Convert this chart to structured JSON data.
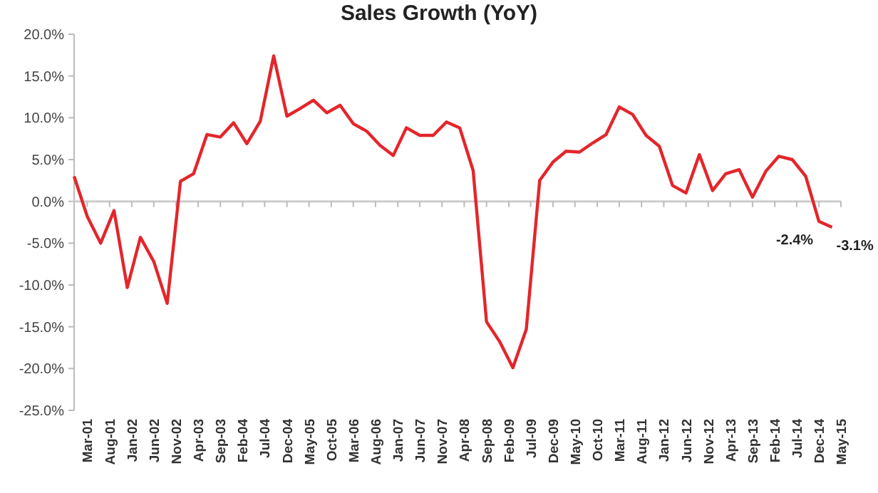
{
  "chart_data": {
    "type": "line",
    "title": "Sales Growth (YoY)",
    "marker": "none",
    "line_style": "solid",
    "xlim": [
      "2000-12",
      "2015-05"
    ],
    "ylim": [
      -25,
      20
    ],
    "yticks": [
      {
        "value": 20,
        "label": "20.0%"
      },
      {
        "value": 15,
        "label": "15.0%"
      },
      {
        "value": 10,
        "label": "10.0%"
      },
      {
        "value": 5,
        "label": "5.0%"
      },
      {
        "value": 0,
        "label": "0.0%"
      },
      {
        "value": -5,
        "label": "-5.0%"
      },
      {
        "value": -10,
        "label": "-10.0%"
      },
      {
        "value": -15,
        "label": "-15.0%"
      },
      {
        "value": -20,
        "label": "-20.0%"
      },
      {
        "value": -25,
        "label": "-25.0%"
      }
    ],
    "xticks": [
      {
        "value": "2001-03",
        "label": "Mar-01"
      },
      {
        "value": "2001-08",
        "label": "Aug-01"
      },
      {
        "value": "2002-01",
        "label": "Jan-02"
      },
      {
        "value": "2002-06",
        "label": "Jun-02"
      },
      {
        "value": "2002-11",
        "label": "Nov-02"
      },
      {
        "value": "2003-04",
        "label": "Apr-03"
      },
      {
        "value": "2003-09",
        "label": "Sep-03"
      },
      {
        "value": "2004-02",
        "label": "Feb-04"
      },
      {
        "value": "2004-07",
        "label": "Jul-04"
      },
      {
        "value": "2004-12",
        "label": "Dec-04"
      },
      {
        "value": "2005-05",
        "label": "May-05"
      },
      {
        "value": "2005-10",
        "label": "Oct-05"
      },
      {
        "value": "2006-03",
        "label": "Mar-06"
      },
      {
        "value": "2006-08",
        "label": "Aug-06"
      },
      {
        "value": "2007-01",
        "label": "Jan-07"
      },
      {
        "value": "2007-06",
        "label": "Jun-07"
      },
      {
        "value": "2007-11",
        "label": "Nov-07"
      },
      {
        "value": "2008-04",
        "label": "Apr-08"
      },
      {
        "value": "2008-09",
        "label": "Sep-08"
      },
      {
        "value": "2009-02",
        "label": "Feb-09"
      },
      {
        "value": "2009-07",
        "label": "Jul-09"
      },
      {
        "value": "2009-12",
        "label": "Dec-09"
      },
      {
        "value": "2010-05",
        "label": "May-10"
      },
      {
        "value": "2010-10",
        "label": "Oct-10"
      },
      {
        "value": "2011-03",
        "label": "Mar-11"
      },
      {
        "value": "2011-08",
        "label": "Aug-11"
      },
      {
        "value": "2012-01",
        "label": "Jan-12"
      },
      {
        "value": "2012-06",
        "label": "Jun-12"
      },
      {
        "value": "2012-11",
        "label": "Nov-12"
      },
      {
        "value": "2013-04",
        "label": "Apr-13"
      },
      {
        "value": "2013-09",
        "label": "Sep-13"
      },
      {
        "value": "2014-02",
        "label": "Feb-14"
      },
      {
        "value": "2014-07",
        "label": "Jul-14"
      },
      {
        "value": "2014-12",
        "label": "Dec-14"
      },
      {
        "value": "2015-05",
        "label": "May-15"
      }
    ],
    "x": [
      "2000-12",
      "2001-03",
      "2001-06",
      "2001-09",
      "2001-12",
      "2002-03",
      "2002-06",
      "2002-09",
      "2002-12",
      "2003-03",
      "2003-06",
      "2003-09",
      "2003-12",
      "2004-03",
      "2004-06",
      "2004-09",
      "2004-12",
      "2005-03",
      "2005-06",
      "2005-09",
      "2005-12",
      "2006-03",
      "2006-06",
      "2006-09",
      "2006-12",
      "2007-03",
      "2007-06",
      "2007-09",
      "2007-12",
      "2008-03",
      "2008-06",
      "2008-09",
      "2008-12",
      "2009-03",
      "2009-06",
      "2009-09",
      "2009-12",
      "2010-03",
      "2010-06",
      "2010-09",
      "2010-12",
      "2011-03",
      "2011-06",
      "2011-09",
      "2011-12",
      "2012-03",
      "2012-06",
      "2012-09",
      "2012-12",
      "2013-03",
      "2013-06",
      "2013-09",
      "2013-12",
      "2014-03",
      "2014-06",
      "2014-09",
      "2014-12",
      "2015-03"
    ],
    "series": [
      {
        "color": "#e3262b",
        "values": [
          3.0,
          -1.8,
          -5.0,
          -1.1,
          -10.3,
          -4.3,
          -7.2,
          -12.2,
          2.4,
          3.3,
          8.0,
          7.7,
          9.4,
          6.9,
          9.6,
          17.4,
          10.2,
          11.1,
          12.1,
          10.6,
          11.5,
          9.3,
          8.4,
          6.7,
          5.5,
          8.8,
          7.9,
          7.9,
          9.5,
          8.8,
          3.7,
          -14.4,
          -16.8,
          -19.9,
          -15.3,
          2.5,
          4.7,
          6.0,
          5.9,
          7.0,
          8.0,
          11.3,
          10.4,
          7.9,
          6.6,
          1.9,
          1.0,
          5.6,
          1.3,
          3.3,
          3.8,
          0.5,
          3.6,
          5.4,
          5.0,
          3.0,
          -2.4,
          -3.1
        ],
        "value_labels": [
          null,
          null,
          null,
          null,
          null,
          null,
          null,
          null,
          null,
          null,
          null,
          null,
          null,
          null,
          null,
          null,
          null,
          null,
          null,
          null,
          null,
          null,
          null,
          null,
          null,
          null,
          null,
          null,
          null,
          null,
          null,
          null,
          null,
          null,
          null,
          null,
          null,
          null,
          null,
          null,
          null,
          null,
          null,
          null,
          null,
          null,
          null,
          null,
          null,
          null,
          null,
          null,
          null,
          null,
          null,
          null,
          "-2.4%",
          "-3.1%"
        ]
      }
    ]
  }
}
